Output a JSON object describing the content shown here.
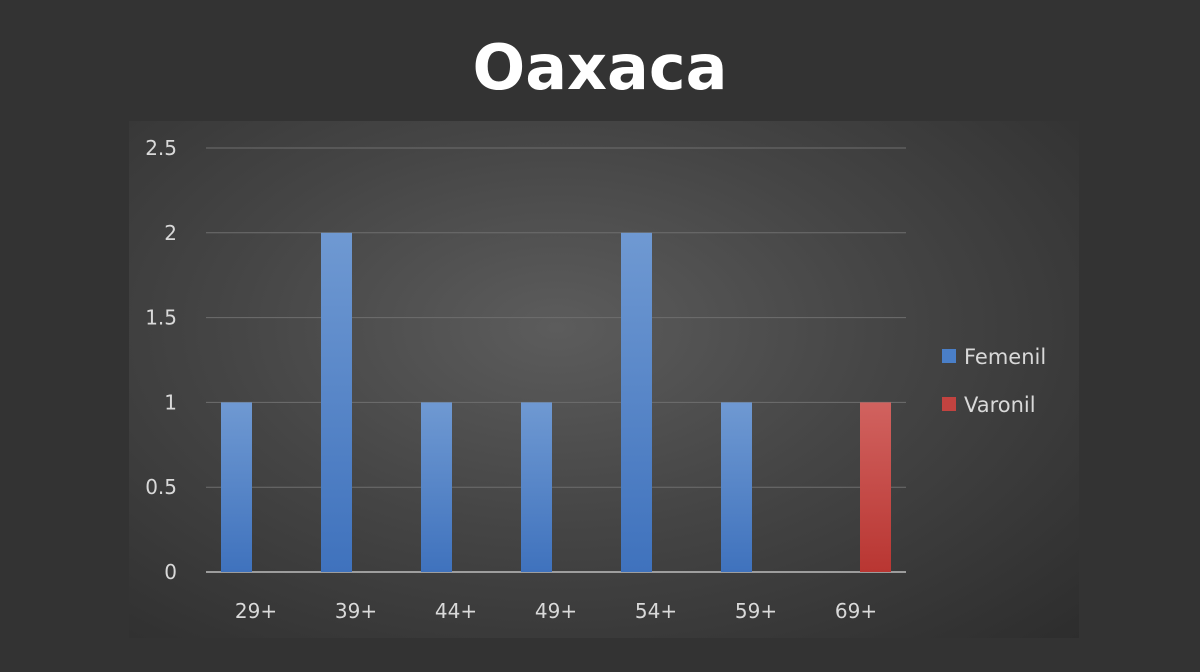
{
  "chart_data": {
    "type": "bar",
    "title": "Oaxaca",
    "xlabel": "",
    "ylabel": "",
    "categories": [
      "29+",
      "39+",
      "44+",
      "49+",
      "54+",
      "59+",
      "69+"
    ],
    "series": [
      {
        "name": "Femenil",
        "color": "#4a7fc8",
        "values": [
          1,
          2,
          1,
          1,
          2,
          1,
          0
        ]
      },
      {
        "name": "Varonil",
        "color": "#c24340",
        "values": [
          0,
          0,
          0,
          0,
          0,
          0,
          1
        ]
      }
    ],
    "ylim": [
      0,
      2.5
    ],
    "yticks": [
      0,
      0.5,
      1,
      1.5,
      2,
      2.5
    ],
    "ytick_labels": [
      "0",
      "0.5",
      "1",
      "1.5",
      "2",
      "2.5"
    ],
    "grid": true,
    "legend_position": "right"
  }
}
